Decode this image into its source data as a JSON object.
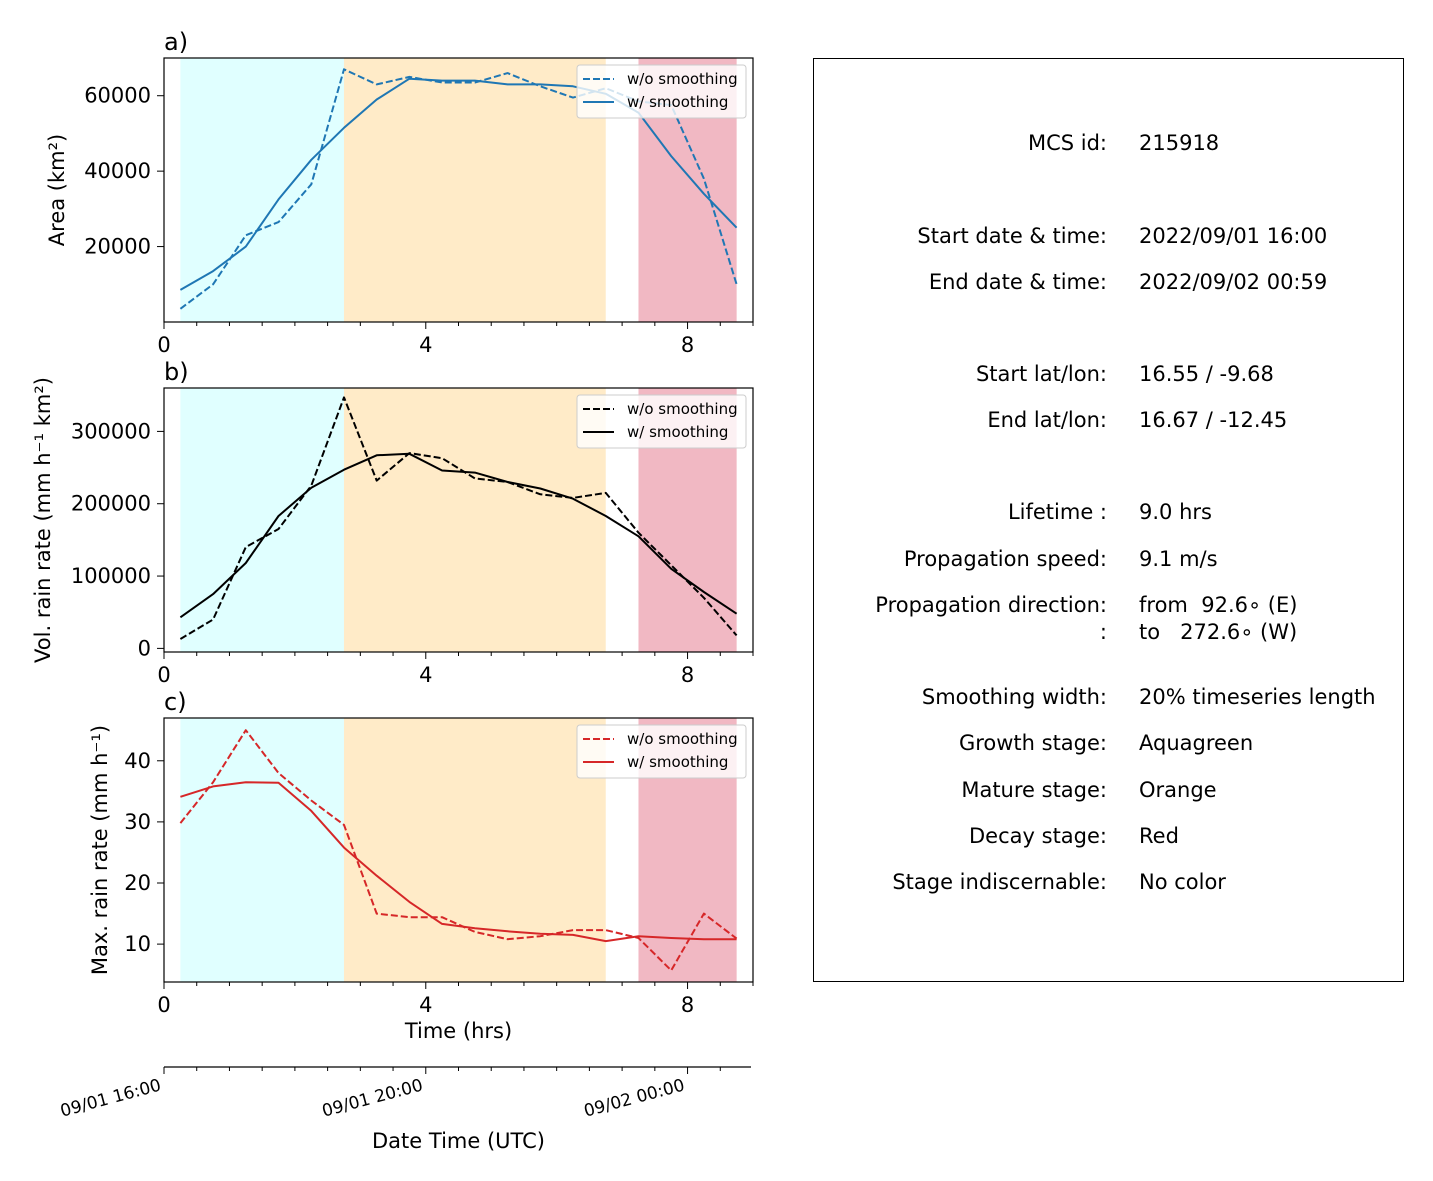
{
  "chart_data": [
    {
      "type": "line",
      "panel_label": "a)",
      "ylabel": "Area  (km²)",
      "xlabel": "",
      "xlim": [
        0,
        9
      ],
      "ylim": [
        0,
        70000
      ],
      "xticks": [
        0,
        4,
        8
      ],
      "yticks": [
        20000,
        40000,
        60000
      ],
      "ytick_labels": [
        "20000",
        "40000",
        "60000"
      ],
      "x": [
        0.25,
        0.75,
        1.25,
        1.75,
        2.25,
        2.75,
        3.25,
        3.75,
        4.25,
        4.75,
        5.25,
        5.75,
        6.25,
        6.75,
        7.25,
        7.75,
        8.25,
        8.75
      ],
      "series": [
        {
          "name": "w/o smoothing",
          "style": "dashed",
          "color": "#1f77b4",
          "values": [
            3500,
            10000,
            23000,
            26500,
            36500,
            67000,
            63000,
            65000,
            63500,
            63500,
            66000,
            62500,
            59500,
            62000,
            58500,
            57500,
            38000,
            10000
          ]
        },
        {
          "name": "w/ smoothing",
          "style": "solid",
          "color": "#1f77b4",
          "values": [
            8500,
            13500,
            20000,
            32500,
            43000,
            51500,
            59000,
            64500,
            64000,
            64000,
            63000,
            63000,
            62500,
            60500,
            55500,
            44000,
            34000,
            25000
          ]
        }
      ],
      "legend": "top-right"
    },
    {
      "type": "line",
      "panel_label": "b)",
      "ylabel": "Vol. rain rate (mm h⁻¹ km²)",
      "xlabel": "",
      "xlim": [
        0,
        9
      ],
      "ylim": [
        -5000,
        360000
      ],
      "xticks": [
        0,
        4,
        8
      ],
      "yticks": [
        0,
        100000,
        200000,
        300000
      ],
      "ytick_labels": [
        "0",
        "100000",
        "200000",
        "300000"
      ],
      "x": [
        0.25,
        0.75,
        1.25,
        1.75,
        2.25,
        2.75,
        3.25,
        3.75,
        4.25,
        4.75,
        5.25,
        5.75,
        6.25,
        6.75,
        7.25,
        7.75,
        8.25,
        8.75
      ],
      "series": [
        {
          "name": "w/o smoothing",
          "style": "dashed",
          "color": "#000000",
          "values": [
            13000,
            40000,
            140000,
            165000,
            225000,
            347000,
            232000,
            270000,
            263000,
            235000,
            230000,
            213000,
            208000,
            215000,
            160000,
            115000,
            70000,
            18000
          ]
        },
        {
          "name": "w/ smoothing",
          "style": "solid",
          "color": "#000000",
          "values": [
            43000,
            75000,
            118000,
            183000,
            222000,
            247000,
            267000,
            269000,
            246000,
            243000,
            230000,
            221000,
            207000,
            183000,
            155000,
            110000,
            78000,
            48000
          ]
        }
      ],
      "legend": "top-right"
    },
    {
      "type": "line",
      "panel_label": "c)",
      "ylabel": "Max. rain rate  (mm h⁻¹)",
      "xlabel": "Time (hrs)",
      "xlim": [
        0,
        9
      ],
      "ylim": [
        3.8,
        47
      ],
      "xticks": [
        0,
        4,
        8
      ],
      "yticks": [
        10,
        20,
        30,
        40
      ],
      "ytick_labels": [
        "10",
        "20",
        "30",
        "40"
      ],
      "x": [
        0.25,
        0.75,
        1.25,
        1.75,
        2.25,
        2.75,
        3.25,
        3.75,
        4.25,
        4.75,
        5.25,
        5.75,
        6.25,
        6.75,
        7.25,
        7.75,
        8.25,
        8.75
      ],
      "series": [
        {
          "name": "w/o smoothing",
          "style": "dashed",
          "color": "#d62728",
          "values": [
            29.8,
            36.5,
            45.0,
            38.0,
            33.5,
            29.5,
            15.0,
            14.4,
            14.4,
            12.0,
            10.8,
            11.3,
            12.3,
            12.3,
            11.0,
            5.7,
            15.0,
            10.9
          ]
        },
        {
          "name": "w/ smoothing",
          "style": "solid",
          "color": "#d62728",
          "values": [
            34.1,
            35.8,
            36.5,
            36.4,
            31.8,
            25.8,
            21.2,
            16.9,
            13.3,
            12.6,
            12.1,
            11.7,
            11.5,
            10.5,
            11.3,
            11.0,
            10.8,
            10.8
          ]
        }
      ],
      "legend": "top-right"
    }
  ],
  "stage_bands": [
    {
      "name": "Growth stage",
      "from": 0.25,
      "to": 2.75,
      "color": "#e0ffff"
    },
    {
      "name": "Mature stage",
      "from": 2.75,
      "to": 6.75,
      "color": "#ffebc8"
    },
    {
      "name": "Decay stage",
      "from": 7.25,
      "to": 8.75,
      "color": "#f1b8c3"
    }
  ],
  "datetime_axis": {
    "label": "Date Time (UTC)",
    "ticks": [
      {
        "hours": 0,
        "label": "09/01 16:00"
      },
      {
        "hours": 4,
        "label": "09/01 20:00"
      },
      {
        "hours": 8,
        "label": "09/02 00:00"
      }
    ]
  },
  "info": {
    "rows": [
      {
        "key": "MCS id:",
        "value": "215918"
      },
      {
        "key": "Start date & time:",
        "value": "2022/09/01 16:00"
      },
      {
        "key": "End date & time:",
        "value": "2022/09/02 00:59"
      },
      {
        "key": "Start lat/lon:",
        "value": "16.55 / -9.68"
      },
      {
        "key": "End lat/lon:",
        "value": "16.67 / -12.45"
      },
      {
        "key": "Lifetime :",
        "value": "9.0 hrs"
      },
      {
        "key": "Propagation speed:",
        "value": "9.1 m/s"
      },
      {
        "key": "Propagation direction:",
        "value": "from  92.6∘ (E)"
      },
      {
        "key": ":",
        "value": "to   272.6∘ (W)"
      },
      {
        "key": "Smoothing width:",
        "value": "20% timeseries length"
      },
      {
        "key": "Growth stage:",
        "value": "Aquagreen"
      },
      {
        "key": "Mature stage:",
        "value": "Orange"
      },
      {
        "key": "Decay stage:",
        "value": "Red"
      },
      {
        "key": "Stage indiscernable:",
        "value": "No color"
      }
    ]
  }
}
